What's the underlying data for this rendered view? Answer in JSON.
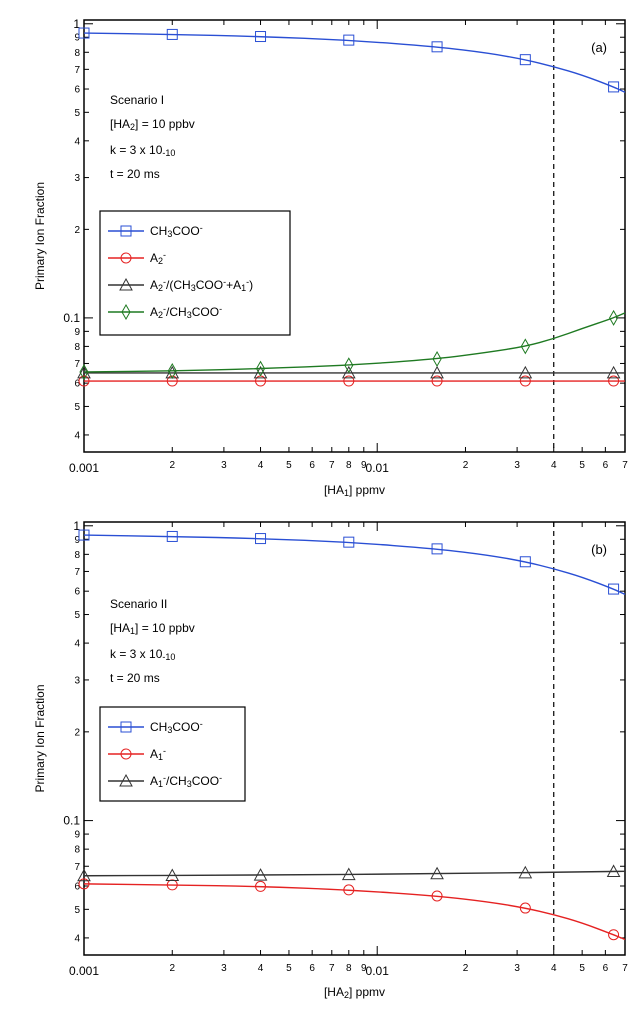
{
  "chart_data": [
    {
      "type": "line",
      "panel_label": "(a)",
      "xlabel_parts": [
        "[HA",
        "1",
        "] ppmv"
      ],
      "ylabel": "Primary Ion Fraction",
      "xscale": "log",
      "yscale": "log",
      "xlim": [
        0.001,
        0.07
      ],
      "ylim": [
        0.035,
        1.03
      ],
      "x_major_ticks": [
        {
          "v": 0.001,
          "label": "0.001"
        },
        {
          "v": 0.01,
          "label": "0.01"
        }
      ],
      "x_minor_ticks": [
        {
          "v": 0.002,
          "label": "2"
        },
        {
          "v": 0.003,
          "label": "3"
        },
        {
          "v": 0.004,
          "label": "4"
        },
        {
          "v": 0.005,
          "label": "5"
        },
        {
          "v": 0.006,
          "label": "6"
        },
        {
          "v": 0.007,
          "label": "7"
        },
        {
          "v": 0.008,
          "label": "8"
        },
        {
          "v": 0.009,
          "label": "9"
        },
        {
          "v": 0.02,
          "label": "2"
        },
        {
          "v": 0.03,
          "label": "3"
        },
        {
          "v": 0.04,
          "label": "4"
        },
        {
          "v": 0.05,
          "label": "5"
        },
        {
          "v": 0.06,
          "label": "6"
        },
        {
          "v": 0.07,
          "label": "7"
        }
      ],
      "y_major_ticks": [
        {
          "v": 0.1,
          "label": "0.1"
        },
        {
          "v": 1,
          "label": "1"
        }
      ],
      "y_minor_ticks": [
        {
          "v": 0.04,
          "label": "4"
        },
        {
          "v": 0.05,
          "label": "5"
        },
        {
          "v": 0.06,
          "label": "6"
        },
        {
          "v": 0.07,
          "label": "7"
        },
        {
          "v": 0.08,
          "label": "8"
        },
        {
          "v": 0.09,
          "label": "9"
        },
        {
          "v": 0.2,
          "label": "2"
        },
        {
          "v": 0.3,
          "label": "3"
        },
        {
          "v": 0.4,
          "label": "4"
        },
        {
          "v": 0.5,
          "label": "5"
        },
        {
          "v": 0.6,
          "label": "6"
        },
        {
          "v": 0.7,
          "label": "7"
        },
        {
          "v": 0.8,
          "label": "8"
        },
        {
          "v": 0.9,
          "label": "9"
        }
      ],
      "vline_x": 0.04,
      "info_lines": [
        {
          "parts": [
            "Scenario I"
          ]
        },
        {
          "parts": [
            "[HA",
            "2",
            "] = 10 ppbv"
          ]
        },
        {
          "parts": [
            "k = 3 x 10",
            "-10",
            ""
          ]
        },
        {
          "parts": [
            "t = 20 ms"
          ]
        }
      ],
      "legend_position": "middle-left",
      "series": [
        {
          "legend_parts": [
            "CH",
            "3",
            "COO",
            "-",
            ""
          ],
          "color": "#2a4fd4",
          "marker": "square",
          "x": [
            0.001,
            0.002,
            0.004,
            0.008,
            0.016,
            0.032,
            0.064
          ],
          "y": [
            0.93,
            0.92,
            0.905,
            0.88,
            0.835,
            0.755,
            0.61
          ],
          "curve_x": [
            0.001,
            0.002,
            0.004,
            0.008,
            0.016,
            0.024,
            0.032,
            0.04,
            0.05,
            0.064,
            0.07
          ],
          "curve_y": [
            0.93,
            0.92,
            0.905,
            0.88,
            0.835,
            0.795,
            0.755,
            0.715,
            0.67,
            0.61,
            0.585
          ]
        },
        {
          "legend_parts": [
            "A",
            "2",
            "",
            "-",
            ""
          ],
          "color": "#e52222",
          "marker": "circle",
          "x": [
            0.001,
            0.002,
            0.004,
            0.008,
            0.016,
            0.032,
            0.064
          ],
          "y": [
            0.061,
            0.061,
            0.061,
            0.061,
            0.061,
            0.061,
            0.061
          ],
          "curve_x": [
            0.001,
            0.07
          ],
          "curve_y": [
            0.061,
            0.061
          ]
        },
        {
          "legend_parts": [
            "A",
            "2",
            "",
            "-",
            "/(CH",
            "3",
            "COO",
            "-",
            "+A",
            "1",
            "",
            "-",
            ")"
          ],
          "color": "#333333",
          "marker": "triangle",
          "x": [
            0.001,
            0.002,
            0.004,
            0.008,
            0.016,
            0.032,
            0.064
          ],
          "y": [
            0.065,
            0.065,
            0.065,
            0.065,
            0.065,
            0.065,
            0.065
          ],
          "curve_x": [
            0.001,
            0.07
          ],
          "curve_y": [
            0.065,
            0.065
          ]
        },
        {
          "legend_parts": [
            "A",
            "2",
            "",
            "-",
            "/CH",
            "3",
            "COO",
            "-",
            ""
          ],
          "color": "#1f7a22",
          "marker": "diamond",
          "x": [
            0.001,
            0.002,
            0.004,
            0.008,
            0.016,
            0.032,
            0.064
          ],
          "y": [
            0.0655,
            0.066,
            0.0672,
            0.069,
            0.0725,
            0.08,
            0.1
          ],
          "curve_x": [
            0.001,
            0.002,
            0.004,
            0.008,
            0.016,
            0.024,
            0.032,
            0.04,
            0.05,
            0.064,
            0.07
          ],
          "curve_y": [
            0.0655,
            0.066,
            0.0672,
            0.069,
            0.0725,
            0.0765,
            0.08,
            0.085,
            0.092,
            0.1,
            0.104
          ]
        }
      ]
    },
    {
      "type": "line",
      "panel_label": "(b)",
      "xlabel_parts": [
        "[HA",
        "2",
        "] ppmv"
      ],
      "ylabel": "Primary Ion Fraction",
      "xscale": "log",
      "yscale": "log",
      "xlim": [
        0.001,
        0.07
      ],
      "ylim": [
        0.035,
        1.03
      ],
      "x_major_ticks": [
        {
          "v": 0.001,
          "label": "0.001"
        },
        {
          "v": 0.01,
          "label": "0.01"
        }
      ],
      "x_minor_ticks": [
        {
          "v": 0.002,
          "label": "2"
        },
        {
          "v": 0.003,
          "label": "3"
        },
        {
          "v": 0.004,
          "label": "4"
        },
        {
          "v": 0.005,
          "label": "5"
        },
        {
          "v": 0.006,
          "label": "6"
        },
        {
          "v": 0.007,
          "label": "7"
        },
        {
          "v": 0.008,
          "label": "8"
        },
        {
          "v": 0.009,
          "label": "9"
        },
        {
          "v": 0.02,
          "label": "2"
        },
        {
          "v": 0.03,
          "label": "3"
        },
        {
          "v": 0.04,
          "label": "4"
        },
        {
          "v": 0.05,
          "label": "5"
        },
        {
          "v": 0.06,
          "label": "6"
        },
        {
          "v": 0.07,
          "label": "7"
        }
      ],
      "y_major_ticks": [
        {
          "v": 0.1,
          "label": "0.1"
        },
        {
          "v": 1,
          "label": "1"
        }
      ],
      "y_minor_ticks": [
        {
          "v": 0.04,
          "label": "4"
        },
        {
          "v": 0.05,
          "label": "5"
        },
        {
          "v": 0.06,
          "label": "6"
        },
        {
          "v": 0.07,
          "label": "7"
        },
        {
          "v": 0.08,
          "label": "8"
        },
        {
          "v": 0.09,
          "label": "9"
        },
        {
          "v": 0.2,
          "label": "2"
        },
        {
          "v": 0.3,
          "label": "3"
        },
        {
          "v": 0.4,
          "label": "4"
        },
        {
          "v": 0.5,
          "label": "5"
        },
        {
          "v": 0.6,
          "label": "6"
        },
        {
          "v": 0.7,
          "label": "7"
        },
        {
          "v": 0.8,
          "label": "8"
        },
        {
          "v": 0.9,
          "label": "9"
        }
      ],
      "vline_x": 0.04,
      "info_lines": [
        {
          "parts": [
            "Scenario II"
          ]
        },
        {
          "parts": [
            "[HA",
            "1",
            "] = 10 ppbv"
          ]
        },
        {
          "parts": [
            "k = 3 x 10",
            "-10",
            ""
          ]
        },
        {
          "parts": [
            "t = 20 ms"
          ]
        }
      ],
      "legend_position": "middle-left",
      "series": [
        {
          "legend_parts": [
            "CH",
            "3",
            "COO",
            "-",
            ""
          ],
          "color": "#2a4fd4",
          "marker": "square",
          "x": [
            0.001,
            0.002,
            0.004,
            0.008,
            0.016,
            0.032,
            0.064
          ],
          "y": [
            0.93,
            0.92,
            0.905,
            0.88,
            0.835,
            0.755,
            0.61
          ],
          "curve_x": [
            0.001,
            0.002,
            0.004,
            0.008,
            0.016,
            0.024,
            0.032,
            0.04,
            0.05,
            0.064,
            0.07
          ],
          "curve_y": [
            0.93,
            0.92,
            0.905,
            0.88,
            0.835,
            0.795,
            0.755,
            0.715,
            0.67,
            0.61,
            0.585
          ]
        },
        {
          "legend_parts": [
            "A",
            "1",
            "",
            "-",
            ""
          ],
          "color": "#e52222",
          "marker": "circle",
          "x": [
            0.001,
            0.002,
            0.004,
            0.008,
            0.016,
            0.032,
            0.064
          ],
          "y": [
            0.061,
            0.0605,
            0.0598,
            0.0582,
            0.0555,
            0.0505,
            0.041
          ],
          "curve_x": [
            0.001,
            0.002,
            0.004,
            0.008,
            0.016,
            0.024,
            0.032,
            0.04,
            0.05,
            0.064,
            0.07
          ],
          "curve_y": [
            0.061,
            0.0605,
            0.0598,
            0.0582,
            0.0555,
            0.053,
            0.0505,
            0.048,
            0.045,
            0.041,
            0.0395
          ]
        },
        {
          "legend_parts": [
            "A",
            "1",
            "",
            "-",
            "/CH",
            "3",
            "COO",
            "-",
            ""
          ],
          "color": "#333333",
          "marker": "triangle",
          "x": [
            0.001,
            0.002,
            0.004,
            0.008,
            0.016,
            0.032,
            0.064
          ],
          "y": [
            0.065,
            0.0651,
            0.0653,
            0.0656,
            0.066,
            0.0665,
            0.0672
          ],
          "curve_x": [
            0.001,
            0.004,
            0.016,
            0.064,
            0.07
          ],
          "curve_y": [
            0.065,
            0.0653,
            0.066,
            0.0672,
            0.0673
          ]
        }
      ]
    }
  ]
}
